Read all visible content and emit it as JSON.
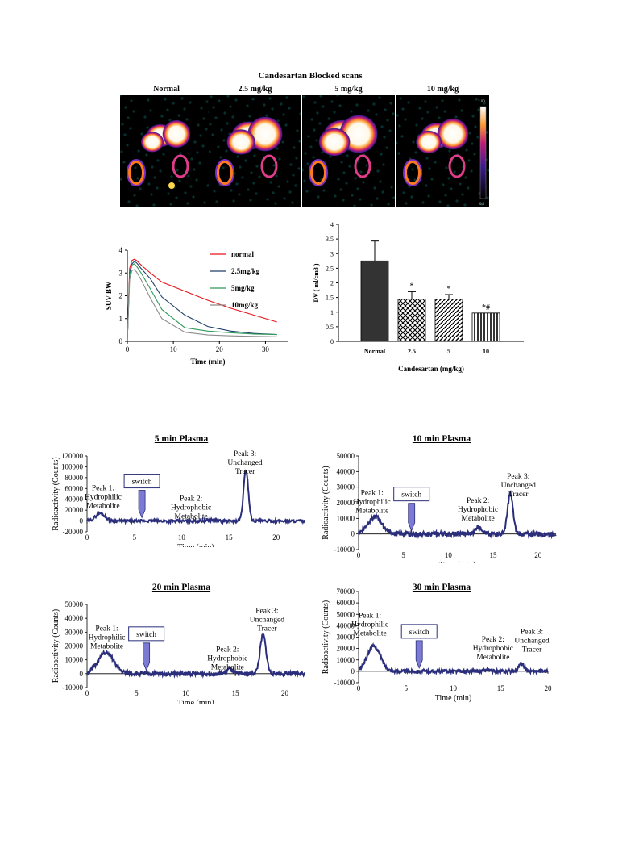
{
  "scans": {
    "title": "Candesartan Blocked scans",
    "labels": [
      "Normal",
      "2.5 mg/kg",
      "5 mg/kg",
      "10 mg/kg"
    ],
    "colorbar_max": "2.00",
    "colorbar_min": "0.0"
  },
  "chart_data": [
    {
      "type": "line",
      "id": "suv",
      "xlabel": "Time (min)",
      "ylabel": "SUV BW",
      "xlim": [
        0,
        35
      ],
      "ylim": [
        0,
        4
      ],
      "xticks": [
        0,
        10,
        20,
        30
      ],
      "yticks": [
        0,
        1,
        2,
        3,
        4
      ],
      "legend": "right",
      "series": [
        {
          "name": "normal",
          "color": "#e8141b",
          "x": [
            0,
            0.5,
            1,
            1.5,
            2,
            3,
            5,
            7.5,
            12.5,
            17.5,
            22.5,
            27.5,
            32.5
          ],
          "y": [
            0,
            3.2,
            3.55,
            3.6,
            3.55,
            3.35,
            3.0,
            2.6,
            2.2,
            1.8,
            1.45,
            1.15,
            0.85
          ]
        },
        {
          "name": "2.5mg/kg",
          "color": "#1f3f6b",
          "x": [
            0,
            0.5,
            1,
            1.5,
            2,
            3,
            5,
            7.5,
            12.5,
            17.5,
            22.5,
            27.5,
            32.5
          ],
          "y": [
            0,
            3.0,
            3.4,
            3.5,
            3.45,
            3.2,
            2.75,
            1.95,
            1.15,
            0.65,
            0.45,
            0.35,
            0.3
          ]
        },
        {
          "name": "5mg/kg",
          "color": "#2e9b5b",
          "x": [
            0,
            0.5,
            1,
            1.5,
            2,
            3,
            5,
            7.5,
            12.5,
            17.5,
            22.5,
            27.5,
            32.5
          ],
          "y": [
            0,
            2.9,
            3.35,
            3.4,
            3.3,
            3.0,
            2.3,
            1.4,
            0.6,
            0.45,
            0.38,
            0.32,
            0.3
          ]
        },
        {
          "name": "10mg/kg",
          "color": "#8c8c8c",
          "x": [
            0,
            0.5,
            1,
            1.5,
            2,
            3,
            5,
            7.5,
            12.5,
            17.5,
            22.5,
            27.5,
            32.5
          ],
          "y": [
            0,
            2.7,
            3.1,
            3.15,
            3.05,
            2.7,
            1.9,
            1.0,
            0.4,
            0.28,
            0.24,
            0.22,
            0.2
          ]
        }
      ]
    },
    {
      "type": "bar",
      "id": "dv",
      "xlabel": "Candesartan (mg/kg)",
      "ylabel": "DV ( ml/cm3 )",
      "ylim": [
        0,
        4
      ],
      "yticks": [
        0,
        0.5,
        1,
        1.5,
        2,
        2.5,
        3,
        3.5,
        4
      ],
      "categories": [
        "Normal",
        "2.5",
        "5",
        "10"
      ],
      "values": [
        2.75,
        1.45,
        1.45,
        0.97
      ],
      "errors": [
        0.68,
        0.25,
        0.15,
        0.0
      ],
      "annotations": [
        "",
        "*",
        "*",
        "*#"
      ],
      "patterns": [
        "solid",
        "check",
        "diagonal",
        "vertical"
      ]
    },
    {
      "type": "line",
      "id": "p5",
      "title": "5 min Plasma",
      "xlabel": "Time (min)",
      "ylabel": "Radioactivity (Counts)",
      "xlim": [
        0,
        23
      ],
      "ylim": [
        -20000,
        120000
      ],
      "xticks": [
        0,
        5,
        10,
        15,
        20
      ],
      "yticks": [
        -20000,
        0,
        20000,
        40000,
        60000,
        80000,
        100000,
        120000
      ],
      "peaks": [
        {
          "center": 1.4,
          "height": 14000,
          "width": 0.5
        },
        {
          "center": 13.2,
          "height": 2500,
          "width": 0.4
        },
        {
          "center": 16.8,
          "height": 95000,
          "width": 0.25
        }
      ],
      "noise": 2500,
      "switch_x": 5.8,
      "annotations": [
        {
          "text": [
            "Peak 1:",
            "Hydrophilic",
            "Metabolite"
          ],
          "x": 1.7,
          "y": 57000
        },
        {
          "text": [
            "Peak 2:",
            "Hydrophobic",
            "Metabolite"
          ],
          "x": 11.0,
          "y": 37000
        },
        {
          "text": [
            "Peak 3:",
            "Unchanged",
            "Tracer"
          ],
          "x": 16.7,
          "y": 120000
        }
      ],
      "switch_label": "switch"
    },
    {
      "type": "line",
      "id": "p10",
      "title": "10 min Plasma",
      "xlabel": "Time (min)",
      "ylabel": "Radioactivity (Counts)",
      "xlim": [
        0,
        22
      ],
      "ylim": [
        -10000,
        50000
      ],
      "xticks": [
        0,
        5,
        10,
        15,
        20
      ],
      "yticks": [
        -10000,
        0,
        10000,
        20000,
        30000,
        40000,
        50000
      ],
      "peaks": [
        {
          "center": 1.8,
          "height": 11000,
          "width": 0.8
        },
        {
          "center": 13.4,
          "height": 5000,
          "width": 0.35
        },
        {
          "center": 16.9,
          "height": 26000,
          "width": 0.3
        }
      ],
      "noise": 1500,
      "switch_x": 5.9,
      "annotations": [
        {
          "text": [
            "Peak 1:",
            "Hydrophilic",
            "Metabolite"
          ],
          "x": 1.5,
          "y": 25000
        },
        {
          "text": [
            "Peak 2:",
            "Hydrophobic",
            "Metabolite"
          ],
          "x": 13.3,
          "y": 20000
        },
        {
          "text": [
            "Peak 3:",
            "Unchanged",
            "Tracer"
          ],
          "x": 17.8,
          "y": 35500
        }
      ],
      "switch_label": "switch"
    },
    {
      "type": "line",
      "id": "p20",
      "title": "20 min Plasma",
      "xlabel": "Time (min)",
      "ylabel": "Radioactivity (Counts)",
      "xlim": [
        0,
        22
      ],
      "ylim": [
        -10000,
        50000
      ],
      "xticks": [
        0,
        5,
        10,
        15,
        20
      ],
      "yticks": [
        -10000,
        0,
        10000,
        20000,
        30000,
        40000,
        50000
      ],
      "peaks": [
        {
          "center": 1.9,
          "height": 15000,
          "width": 0.8
        },
        {
          "center": 14.4,
          "height": 3500,
          "width": 0.3
        },
        {
          "center": 17.8,
          "height": 28000,
          "width": 0.3
        }
      ],
      "noise": 1500,
      "switch_x": 6.0,
      "annotations": [
        {
          "text": [
            "Peak 1:",
            "Hydrophilic",
            "Metabolite"
          ],
          "x": 2.0,
          "y": 31000
        },
        {
          "text": [
            "Peak 2:",
            "Hydrophobic",
            "Metabolite"
          ],
          "x": 14.2,
          "y": 16000
        },
        {
          "text": [
            "Peak 3:",
            "Unchanged",
            "Tracer"
          ],
          "x": 18.2,
          "y": 44000
        }
      ],
      "switch_label": "switch"
    },
    {
      "type": "line",
      "id": "p30",
      "title": "30 min Plasma",
      "xlabel": "Time (min)",
      "ylabel": "Radioactivity (Counts)",
      "xlim": [
        0,
        20
      ],
      "ylim": [
        -10000,
        70000
      ],
      "xticks": [
        0,
        5,
        10,
        15,
        20
      ],
      "yticks": [
        -10000,
        0,
        10000,
        20000,
        30000,
        40000,
        50000,
        60000,
        70000
      ],
      "peaks": [
        {
          "center": 1.6,
          "height": 22000,
          "width": 0.7
        },
        {
          "center": 13.5,
          "height": 1500,
          "width": 0.3
        },
        {
          "center": 17.2,
          "height": 7000,
          "width": 0.3
        }
      ],
      "noise": 1500,
      "switch_x": 6.4,
      "annotations": [
        {
          "text": [
            "Peak 1:",
            "Hydrophilic",
            "Metabolite"
          ],
          "x": 1.2,
          "y": 47000
        },
        {
          "text": [
            "Peak 2:",
            "Hydrophobic",
            "Metabolite"
          ],
          "x": 14.2,
          "y": 26000
        },
        {
          "text": [
            "Peak 3:",
            "Unchanged",
            "Tracer"
          ],
          "x": 18.3,
          "y": 33000
        }
      ],
      "switch_label": "switch"
    }
  ]
}
